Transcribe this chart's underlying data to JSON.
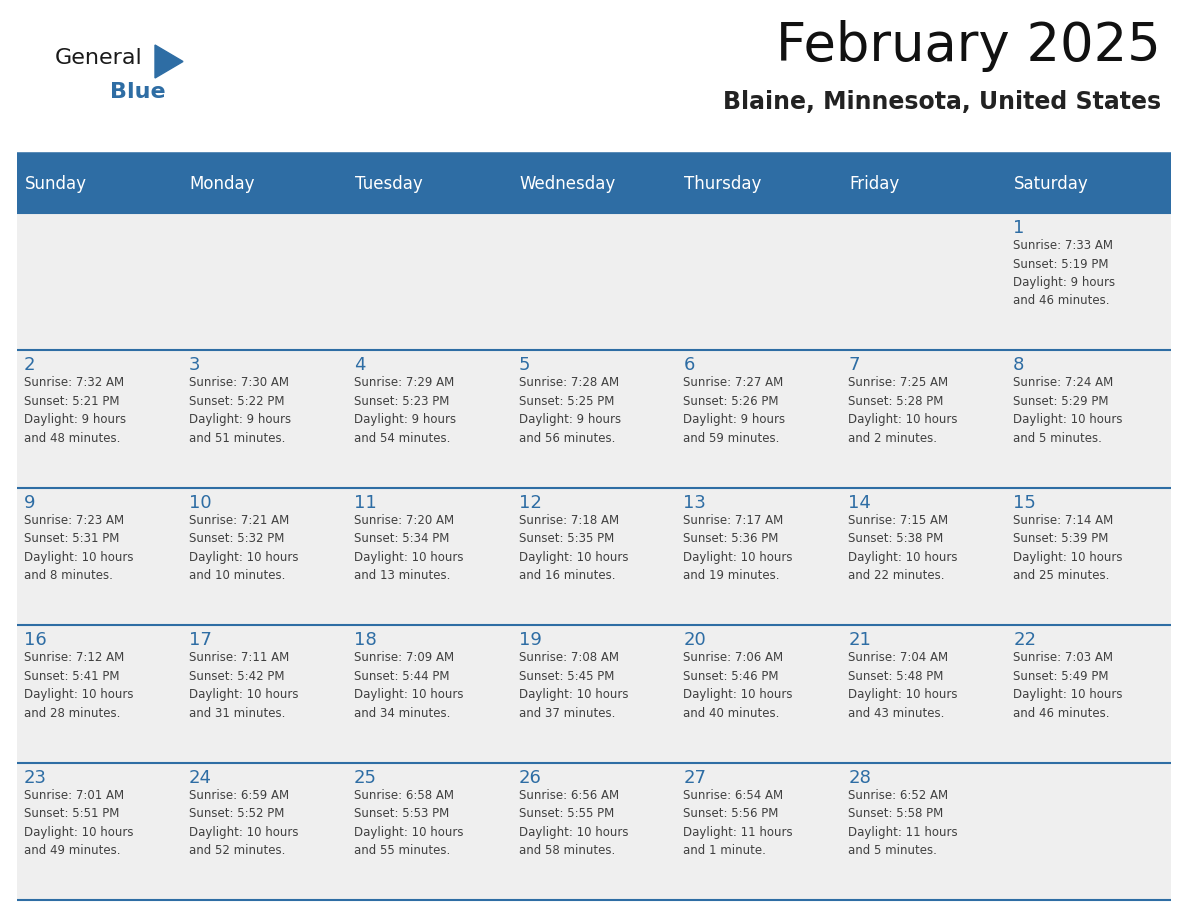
{
  "title": "February 2025",
  "subtitle": "Blaine, Minnesota, United States",
  "header_bg": "#2E6DA4",
  "header_text_color": "#FFFFFF",
  "cell_bg": "#EFEFEF",
  "day_number_color": "#2E6DA4",
  "text_color": "#404040",
  "line_color": "#2E6DA4",
  "days_of_week": [
    "Sunday",
    "Monday",
    "Tuesday",
    "Wednesday",
    "Thursday",
    "Friday",
    "Saturday"
  ],
  "weeks": [
    [
      {
        "day": "",
        "info": ""
      },
      {
        "day": "",
        "info": ""
      },
      {
        "day": "",
        "info": ""
      },
      {
        "day": "",
        "info": ""
      },
      {
        "day": "",
        "info": ""
      },
      {
        "day": "",
        "info": ""
      },
      {
        "day": "1",
        "info": "Sunrise: 7:33 AM\nSunset: 5:19 PM\nDaylight: 9 hours\nand 46 minutes."
      }
    ],
    [
      {
        "day": "2",
        "info": "Sunrise: 7:32 AM\nSunset: 5:21 PM\nDaylight: 9 hours\nand 48 minutes."
      },
      {
        "day": "3",
        "info": "Sunrise: 7:30 AM\nSunset: 5:22 PM\nDaylight: 9 hours\nand 51 minutes."
      },
      {
        "day": "4",
        "info": "Sunrise: 7:29 AM\nSunset: 5:23 PM\nDaylight: 9 hours\nand 54 minutes."
      },
      {
        "day": "5",
        "info": "Sunrise: 7:28 AM\nSunset: 5:25 PM\nDaylight: 9 hours\nand 56 minutes."
      },
      {
        "day": "6",
        "info": "Sunrise: 7:27 AM\nSunset: 5:26 PM\nDaylight: 9 hours\nand 59 minutes."
      },
      {
        "day": "7",
        "info": "Sunrise: 7:25 AM\nSunset: 5:28 PM\nDaylight: 10 hours\nand 2 minutes."
      },
      {
        "day": "8",
        "info": "Sunrise: 7:24 AM\nSunset: 5:29 PM\nDaylight: 10 hours\nand 5 minutes."
      }
    ],
    [
      {
        "day": "9",
        "info": "Sunrise: 7:23 AM\nSunset: 5:31 PM\nDaylight: 10 hours\nand 8 minutes."
      },
      {
        "day": "10",
        "info": "Sunrise: 7:21 AM\nSunset: 5:32 PM\nDaylight: 10 hours\nand 10 minutes."
      },
      {
        "day": "11",
        "info": "Sunrise: 7:20 AM\nSunset: 5:34 PM\nDaylight: 10 hours\nand 13 minutes."
      },
      {
        "day": "12",
        "info": "Sunrise: 7:18 AM\nSunset: 5:35 PM\nDaylight: 10 hours\nand 16 minutes."
      },
      {
        "day": "13",
        "info": "Sunrise: 7:17 AM\nSunset: 5:36 PM\nDaylight: 10 hours\nand 19 minutes."
      },
      {
        "day": "14",
        "info": "Sunrise: 7:15 AM\nSunset: 5:38 PM\nDaylight: 10 hours\nand 22 minutes."
      },
      {
        "day": "15",
        "info": "Sunrise: 7:14 AM\nSunset: 5:39 PM\nDaylight: 10 hours\nand 25 minutes."
      }
    ],
    [
      {
        "day": "16",
        "info": "Sunrise: 7:12 AM\nSunset: 5:41 PM\nDaylight: 10 hours\nand 28 minutes."
      },
      {
        "day": "17",
        "info": "Sunrise: 7:11 AM\nSunset: 5:42 PM\nDaylight: 10 hours\nand 31 minutes."
      },
      {
        "day": "18",
        "info": "Sunrise: 7:09 AM\nSunset: 5:44 PM\nDaylight: 10 hours\nand 34 minutes."
      },
      {
        "day": "19",
        "info": "Sunrise: 7:08 AM\nSunset: 5:45 PM\nDaylight: 10 hours\nand 37 minutes."
      },
      {
        "day": "20",
        "info": "Sunrise: 7:06 AM\nSunset: 5:46 PM\nDaylight: 10 hours\nand 40 minutes."
      },
      {
        "day": "21",
        "info": "Sunrise: 7:04 AM\nSunset: 5:48 PM\nDaylight: 10 hours\nand 43 minutes."
      },
      {
        "day": "22",
        "info": "Sunrise: 7:03 AM\nSunset: 5:49 PM\nDaylight: 10 hours\nand 46 minutes."
      }
    ],
    [
      {
        "day": "23",
        "info": "Sunrise: 7:01 AM\nSunset: 5:51 PM\nDaylight: 10 hours\nand 49 minutes."
      },
      {
        "day": "24",
        "info": "Sunrise: 6:59 AM\nSunset: 5:52 PM\nDaylight: 10 hours\nand 52 minutes."
      },
      {
        "day": "25",
        "info": "Sunrise: 6:58 AM\nSunset: 5:53 PM\nDaylight: 10 hours\nand 55 minutes."
      },
      {
        "day": "26",
        "info": "Sunrise: 6:56 AM\nSunset: 5:55 PM\nDaylight: 10 hours\nand 58 minutes."
      },
      {
        "day": "27",
        "info": "Sunrise: 6:54 AM\nSunset: 5:56 PM\nDaylight: 11 hours\nand 1 minute."
      },
      {
        "day": "28",
        "info": "Sunrise: 6:52 AM\nSunset: 5:58 PM\nDaylight: 11 hours\nand 5 minutes."
      },
      {
        "day": "",
        "info": ""
      }
    ]
  ],
  "logo_general_color": "#1a1a1a",
  "logo_blue_color": "#2E6DA4",
  "logo_triangle_color": "#2E6DA4",
  "fig_width": 11.88,
  "fig_height": 9.18,
  "dpi": 100
}
